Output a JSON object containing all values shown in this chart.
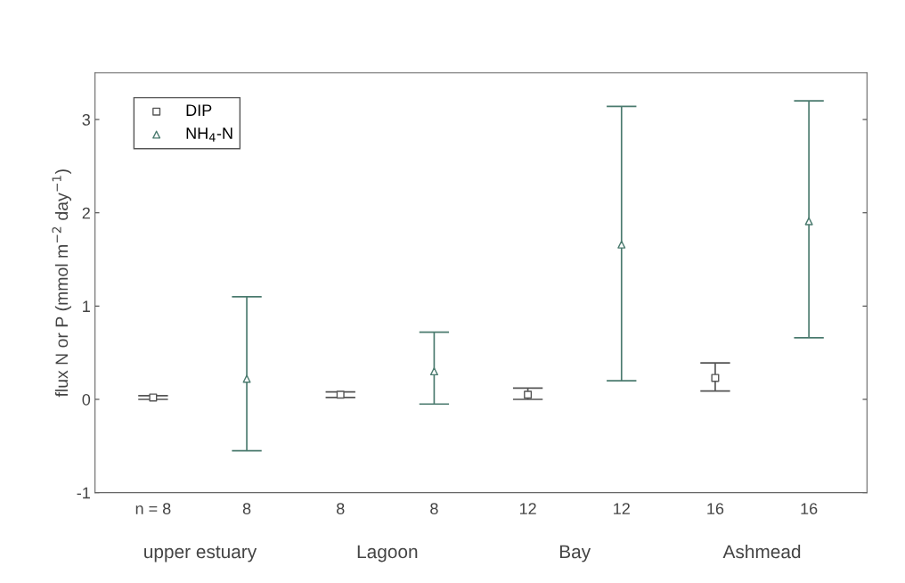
{
  "chart_data": {
    "type": "scatter",
    "ylabel": "flux N or P (mmol m$^{−2}$ day$^{−1}$)",
    "categories": [
      "n = 8",
      "8",
      "8",
      "8",
      "12",
      "12",
      "16",
      "16"
    ],
    "series": [
      {
        "name": "DIP",
        "color": "#555555",
        "marker": "square",
        "values": [
          0.02,
          null,
          0.05,
          null,
          0.05,
          null,
          0.23,
          null
        ],
        "errors": [
          [
            0.0,
            0.04
          ],
          null,
          [
            0.02,
            0.08
          ],
          null,
          [
            0.0,
            0.12
          ],
          null,
          [
            0.09,
            0.39
          ],
          null
        ]
      },
      {
        "name": "NH$_{4}$-N",
        "color": "#4a7a6e",
        "marker": "triangle",
        "values": [
          null,
          0.22,
          null,
          0.3,
          null,
          1.66,
          null,
          1.91
        ],
        "errors": [
          null,
          [
            -0.55,
            1.1
          ],
          null,
          [
            -0.05,
            0.72
          ],
          null,
          [
            0.2,
            3.14
          ],
          null,
          [
            0.66,
            3.2
          ]
        ]
      }
    ],
    "ylim": [
      -1,
      3.5
    ],
    "yticks": [
      -1,
      0,
      1,
      2,
      3
    ],
    "grid": false,
    "legend": "top left",
    "annotations": [
      "upper estuary",
      "Lagoon",
      "Bay",
      "Ashmead"
    ]
  }
}
